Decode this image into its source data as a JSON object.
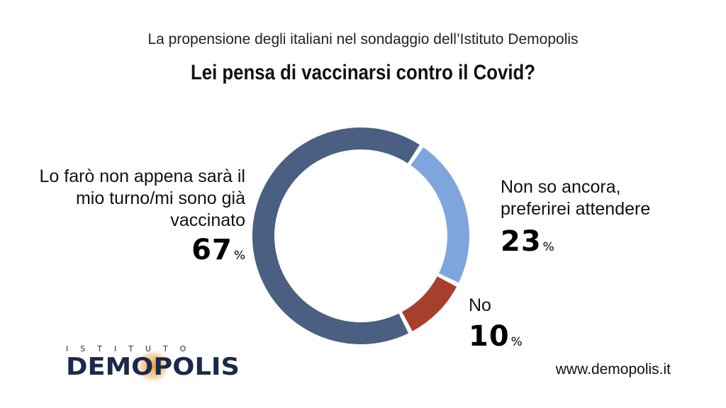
{
  "header": {
    "subtitle": "La propensione degli italiani nel sondaggio dell’Istituto Demopolis",
    "title": "Lei pensa di vaccinarsi contro il Covid?"
  },
  "chart_data": {
    "type": "pie",
    "title": "Lei pensa di vaccinarsi contro il Covid?",
    "subtitle": "La propensione degli italiani nel sondaggio dell’Istituto Demopolis",
    "unit": "%",
    "slices": [
      {
        "label_lines": [
          "Lo farò non appena sarà il",
          "mio turno/mi sono già",
          "vaccinato"
        ],
        "value": 67,
        "color": "#4a5f82"
      },
      {
        "label_lines": [
          "Non so ancora,",
          "preferirei attendere"
        ],
        "value": 23,
        "color": "#7ea6dc"
      },
      {
        "label_lines": [
          "No"
        ],
        "value": 10,
        "color": "#a6402c"
      }
    ]
  },
  "labels": {
    "percent_symbol": "%"
  },
  "logo": {
    "top_text": "ISTITUTO",
    "main_text": "DEMOPOLIS"
  },
  "footer": {
    "website": "www.demopolis.it"
  }
}
